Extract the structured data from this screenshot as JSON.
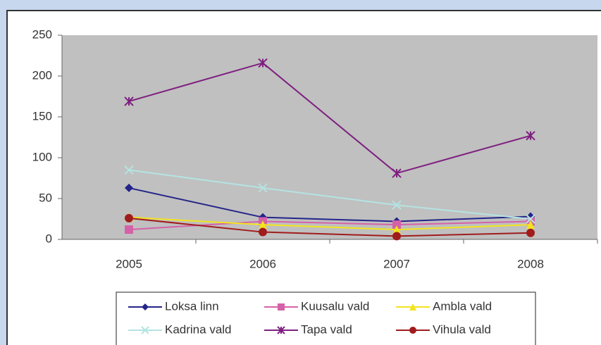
{
  "chart_data": {
    "type": "line",
    "categories": [
      "2005",
      "2006",
      "2007",
      "2008"
    ],
    "series": [
      {
        "name": "Loksa linn",
        "color": "#24248a",
        "marker": "diamond",
        "values": [
          63,
          27,
          22,
          28
        ]
      },
      {
        "name": "Kuusalu vald",
        "color": "#d462a8",
        "marker": "square",
        "values": [
          12,
          22,
          18,
          22
        ]
      },
      {
        "name": "Ambla vald",
        "color": "#f2e41e",
        "marker": "triangle",
        "values": [
          27,
          18,
          12,
          18
        ]
      },
      {
        "name": "Kadrina vald",
        "color": "#b4e4e2",
        "marker": "x",
        "values": [
          85,
          63,
          42,
          25
        ]
      },
      {
        "name": "Tapa vald",
        "color": "#7e1f80",
        "marker": "star",
        "values": [
          169,
          216,
          81,
          127
        ]
      },
      {
        "name": "Vihula vald",
        "color": "#a01c1c",
        "marker": "circle",
        "values": [
          26,
          9,
          4,
          8
        ]
      }
    ],
    "ylim": [
      0,
      250
    ],
    "yticks": [
      0,
      50,
      100,
      150,
      200,
      250
    ],
    "grid": false
  }
}
